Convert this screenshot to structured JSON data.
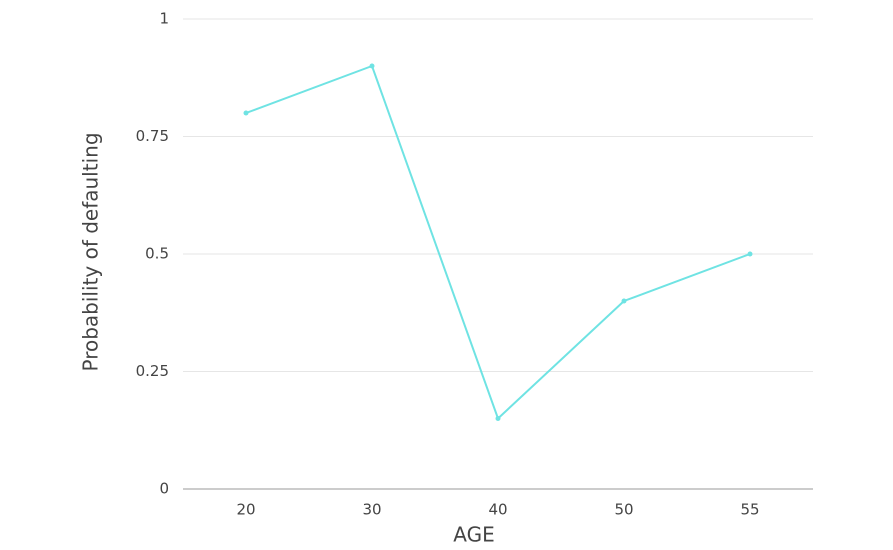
{
  "chart_data": {
    "type": "line",
    "x_label": "AGE",
    "y_label": "Probability of defaulting",
    "categories": [
      "20",
      "30",
      "40",
      "50",
      "55"
    ],
    "values": [
      0.8,
      0.9,
      0.15,
      0.4,
      0.5
    ],
    "color": "#6fe3e3",
    "ylim": [
      0,
      1
    ],
    "yticks": [
      0,
      0.25,
      0.5,
      0.75,
      1
    ],
    "grid": true
  }
}
